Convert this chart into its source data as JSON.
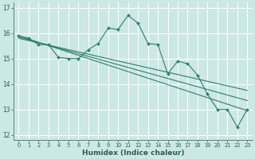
{
  "title": "",
  "xlabel": "Humidex (Indice chaleur)",
  "background_color": "#cce8e4",
  "grid_color": "#ffffff",
  "line_color": "#2e7d6e",
  "xlim": [
    -0.5,
    23.5
  ],
  "ylim": [
    11.8,
    17.2
  ],
  "yticks": [
    12,
    13,
    14,
    15,
    16,
    17
  ],
  "xticks": [
    0,
    1,
    2,
    3,
    4,
    5,
    6,
    7,
    8,
    9,
    10,
    11,
    12,
    13,
    14,
    15,
    16,
    17,
    18,
    19,
    20,
    21,
    22,
    23
  ],
  "main_data_y": [
    15.9,
    15.8,
    15.55,
    15.55,
    15.05,
    15.0,
    15.0,
    15.35,
    15.6,
    16.2,
    16.15,
    16.7,
    16.4,
    15.6,
    15.55,
    14.4,
    14.9,
    14.8,
    14.35,
    13.6,
    13.0,
    13.0,
    12.3,
    13.0
  ],
  "regression_lines": [
    {
      "x0": 0,
      "x1": 23,
      "y0": 15.9,
      "y1": 12.95
    },
    {
      "x0": 0,
      "x1": 23,
      "y0": 15.85,
      "y1": 13.35
    },
    {
      "x0": 0,
      "x1": 23,
      "y0": 15.8,
      "y1": 13.75
    }
  ],
  "tick_color": "#2e5c50",
  "spine_color": "#2e5c50",
  "tick_labelsize": 5.5,
  "xlabel_fontsize": 6.5,
  "xlabel_color": "#2e5c50"
}
